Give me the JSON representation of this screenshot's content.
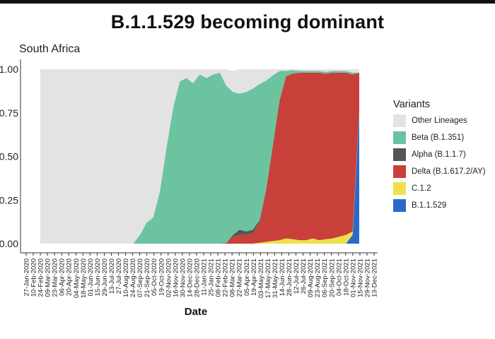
{
  "slide": {
    "title": "B.1.1.529 becoming dominant"
  },
  "chart_data": {
    "type": "area",
    "subtitle": "South Africa",
    "xlabel": "Date",
    "ylabel": "",
    "ylim": [
      0,
      1
    ],
    "y_ticks": [
      "0.00",
      "0.25",
      "0.50",
      "0.75",
      "1.00"
    ],
    "stacked": true,
    "grid": false,
    "legend_title": "Variants",
    "legend_position": "right",
    "x_ticks": [
      "27-Jan-2020",
      "10-Feb-2020",
      "24-Feb-2020",
      "09-Mar-2020",
      "23-Mar-2020",
      "06-Apr-2020",
      "20-Apr-2020",
      "04-May-2020",
      "18-May-2020",
      "01-Jun-2020",
      "15-Jun-2020",
      "29-Jun-2020",
      "13-Jul-2020",
      "27-Jul-2020",
      "10-Aug-2020",
      "24-Aug-2020",
      "07-Sep-2020",
      "21-Sep-2020",
      "05-Oct-2020",
      "19-Oct-2020",
      "02-Nov-2020",
      "16-Nov-2020",
      "30-Nov-2020",
      "14-Dec-2020",
      "28-Dec-2020",
      "11-Jan-2021",
      "25-Jan-2021",
      "08-Feb-2021",
      "22-Feb-2021",
      "08-Mar-2021",
      "22-Mar-2021",
      "05-Apr-2021",
      "19-Apr-2021",
      "03-May-2021",
      "17-May-2021",
      "31-May-2021",
      "14-Jun-2021",
      "28-Jun-2021",
      "12-Jul-2021",
      "26-Jul-2021",
      "09-Aug-2021",
      "23-Aug-2021",
      "06-Sep-2021",
      "20-Sep-2021",
      "04-Oct-2021",
      "18-Oct-2021",
      "01-Nov-2021",
      "15-Nov-2021",
      "29-Nov-2021",
      "13-Dec-2021"
    ],
    "x": [
      "27-Jan-2020",
      "10-Feb-2020",
      "24-Feb-2020",
      "09-Mar-2020",
      "23-Mar-2020",
      "06-Apr-2020",
      "20-Apr-2020",
      "04-May-2020",
      "18-May-2020",
      "01-Jun-2020",
      "15-Jun-2020",
      "29-Jun-2020",
      "13-Jul-2020",
      "27-Jul-2020",
      "10-Aug-2020",
      "24-Aug-2020",
      "07-Sep-2020",
      "21-Sep-2020",
      "05-Oct-2020",
      "19-Oct-2020",
      "02-Nov-2020",
      "16-Nov-2020",
      "30-Nov-2020",
      "14-Dec-2020",
      "28-Dec-2020",
      "11-Jan-2021",
      "25-Jan-2021",
      "08-Feb-2021",
      "22-Feb-2021",
      "08-Mar-2021",
      "22-Mar-2021",
      "05-Apr-2021",
      "19-Apr-2021",
      "03-May-2021",
      "17-May-2021",
      "31-May-2021",
      "14-Jun-2021",
      "28-Jun-2021",
      "12-Jul-2021",
      "26-Jul-2021",
      "09-Aug-2021",
      "23-Aug-2021",
      "06-Sep-2021",
      "20-Sep-2021",
      "04-Oct-2021",
      "18-Oct-2021",
      "01-Nov-2021",
      "15-Nov-2021",
      "29-Nov-2021"
    ],
    "series": [
      {
        "name": "B.1.1.529",
        "color": "#2a6bc8",
        "values": [
          0,
          0,
          0,
          0,
          0,
          0,
          0,
          0,
          0,
          0,
          0,
          0,
          0,
          0,
          0,
          0,
          0,
          0,
          0,
          0,
          0,
          0,
          0,
          0,
          0,
          0,
          0,
          0,
          0,
          0,
          0,
          0,
          0,
          0,
          0,
          0,
          0,
          0,
          0,
          0,
          0,
          0,
          0,
          0,
          0,
          0,
          0,
          0.05,
          0.75
        ]
      },
      {
        "name": "C.1.2",
        "color": "#f0e14a",
        "values": [
          0,
          0,
          0,
          0,
          0,
          0,
          0,
          0,
          0,
          0,
          0,
          0,
          0,
          0,
          0,
          0,
          0,
          0,
          0,
          0,
          0,
          0,
          0,
          0,
          0,
          0,
          0,
          0,
          0,
          0,
          0,
          0,
          0,
          0.005,
          0.01,
          0.015,
          0.02,
          0.03,
          0.025,
          0.02,
          0.02,
          0.03,
          0.02,
          0.025,
          0.03,
          0.04,
          0.05,
          0.02,
          0.01
        ]
      },
      {
        "name": "Delta (B.1.617.2/AY)",
        "color": "#c8403a",
        "values": [
          0,
          0,
          0,
          0,
          0,
          0,
          0,
          0,
          0,
          0,
          0,
          0,
          0,
          0,
          0,
          0,
          0,
          0,
          0,
          0,
          0,
          0,
          0,
          0,
          0,
          0,
          0,
          0,
          0.005,
          0.04,
          0.05,
          0.05,
          0.06,
          0.12,
          0.3,
          0.55,
          0.8,
          0.93,
          0.95,
          0.96,
          0.96,
          0.95,
          0.96,
          0.95,
          0.95,
          0.94,
          0.93,
          0.9,
          0.22
        ]
      },
      {
        "name": "Alpha (B.1.1.7)",
        "color": "#555555",
        "values": [
          0,
          0,
          0,
          0,
          0,
          0,
          0,
          0,
          0,
          0,
          0,
          0,
          0,
          0,
          0,
          0,
          0,
          0,
          0,
          0,
          0,
          0,
          0,
          0,
          0,
          0,
          0,
          0,
          0,
          0.01,
          0.03,
          0.02,
          0.02,
          0.01,
          0.005,
          0,
          0,
          0,
          0,
          0,
          0,
          0,
          0,
          0,
          0,
          0,
          0,
          0,
          0
        ]
      },
      {
        "name": "Beta (B.1.351)",
        "color": "#6cc3a0",
        "values": [
          0,
          0,
          0,
          0,
          0,
          0,
          0,
          0,
          0,
          0,
          0,
          0,
          0,
          0,
          0,
          0.05,
          0.12,
          0.15,
          0.3,
          0.55,
          0.78,
          0.93,
          0.95,
          0.92,
          0.97,
          0.95,
          0.97,
          0.98,
          0.9,
          0.82,
          0.78,
          0.8,
          0.81,
          0.78,
          0.62,
          0.4,
          0.17,
          0.03,
          0.02,
          0.01,
          0.01,
          0.01,
          0.01,
          0.01,
          0.01,
          0.01,
          0.01,
          0.01,
          0.0
        ]
      },
      {
        "name": "Other Lineages",
        "color": "#e3e3e3",
        "values": [
          1,
          1,
          1,
          1,
          1,
          1,
          1,
          1,
          1,
          1,
          1,
          1,
          1,
          1,
          1,
          0.95,
          0.88,
          0.85,
          0.7,
          0.45,
          0.22,
          0.07,
          0.05,
          0.08,
          0.03,
          0.05,
          0.03,
          0.02,
          0.095,
          0.12,
          0.14,
          0.13,
          0.11,
          0.085,
          0.065,
          0.035,
          0.01,
          0.01,
          0.005,
          0.01,
          0.01,
          0.01,
          0.01,
          0.015,
          0.01,
          0.01,
          0.01,
          0.02,
          0.02
        ]
      }
    ]
  }
}
